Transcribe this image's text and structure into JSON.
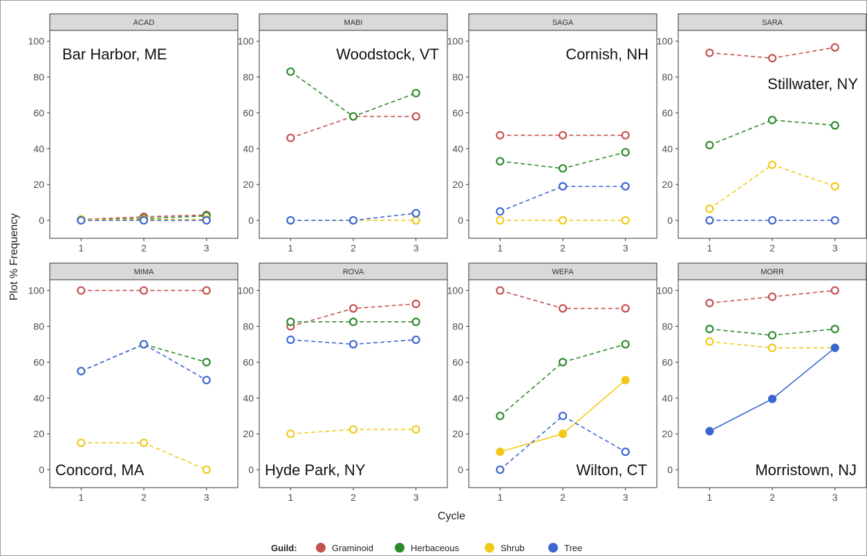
{
  "chart_data": {
    "type": "line",
    "xlabel": "Cycle",
    "ylabel": "Plot % Frequency",
    "x": [
      1,
      2,
      3
    ],
    "xticks": [
      "1",
      "2",
      "3"
    ],
    "yticks": [
      "0",
      "20",
      "40",
      "60",
      "80",
      "100"
    ],
    "ylim": [
      -10,
      106
    ],
    "xlim": [
      0.5,
      3.5
    ],
    "grid": false,
    "legend": {
      "title": "Guild:",
      "position": "bottom",
      "entries": [
        {
          "name": "Graminoid",
          "color": "#c5504f"
        },
        {
          "name": "Herbaceous",
          "color": "#2b8a2b"
        },
        {
          "name": "Shrub",
          "color": "#f2c91a"
        },
        {
          "name": "Tree",
          "color": "#3a66d0"
        }
      ]
    },
    "panels": [
      {
        "code": "ACAD",
        "location": "Bar Harbor, ME",
        "label_pos": "top-left",
        "series": [
          {
            "name": "Graminoid",
            "values": [
              0.5,
              2,
              3
            ],
            "style": "dashed",
            "filled": false
          },
          {
            "name": "Herbaceous",
            "values": [
              0.5,
              1,
              2.5
            ],
            "style": "dashed",
            "filled": false
          },
          {
            "name": "Shrub",
            "values": [
              0.5,
              0.5,
              0.5
            ],
            "style": "dashed",
            "filled": false
          },
          {
            "name": "Tree",
            "values": [
              0,
              0,
              0
            ],
            "style": "dashed",
            "filled": false
          }
        ]
      },
      {
        "code": "MABI",
        "location": "Woodstock, VT",
        "label_pos": "top-right",
        "series": [
          {
            "name": "Graminoid",
            "values": [
              46,
              58,
              58
            ],
            "style": "dashed",
            "filled": false
          },
          {
            "name": "Herbaceous",
            "values": [
              83,
              58,
              71
            ],
            "style": "dashed",
            "filled": false
          },
          {
            "name": "Shrub",
            "values": [
              0,
              0,
              0
            ],
            "style": "dashed",
            "filled": false
          },
          {
            "name": "Tree",
            "values": [
              0,
              0,
              4
            ],
            "style": "dashed",
            "filled": false
          }
        ]
      },
      {
        "code": "SAGA",
        "location": "Cornish, NH",
        "label_pos": "top-right",
        "series": [
          {
            "name": "Graminoid",
            "values": [
              47.5,
              47.5,
              47.5
            ],
            "style": "dashed",
            "filled": false
          },
          {
            "name": "Herbaceous",
            "values": [
              33,
              29,
              38
            ],
            "style": "dashed",
            "filled": false
          },
          {
            "name": "Shrub",
            "values": [
              0,
              0,
              0
            ],
            "style": "dashed",
            "filled": false
          },
          {
            "name": "Tree",
            "values": [
              5,
              19,
              19
            ],
            "style": "dashed",
            "filled": false
          }
        ]
      },
      {
        "code": "SARA",
        "location": "Stillwater, NY",
        "label_pos": "upper-right",
        "series": [
          {
            "name": "Graminoid",
            "values": [
              93.5,
              90.5,
              96.5
            ],
            "style": "dashed",
            "filled": false
          },
          {
            "name": "Herbaceous",
            "values": [
              42,
              56,
              53
            ],
            "style": "dashed",
            "filled": false
          },
          {
            "name": "Shrub",
            "values": [
              6.5,
              31,
              19
            ],
            "style": "dashed",
            "filled": false
          },
          {
            "name": "Tree",
            "values": [
              0,
              0,
              0
            ],
            "style": "dashed",
            "filled": false
          }
        ]
      },
      {
        "code": "MIMA",
        "location": "Concord, MA",
        "label_pos": "bottom-left",
        "series": [
          {
            "name": "Graminoid",
            "values": [
              100,
              100,
              100
            ],
            "style": "dashed",
            "filled": false
          },
          {
            "name": "Herbaceous",
            "values": [
              55,
              70,
              60
            ],
            "style": "dashed",
            "filled": false
          },
          {
            "name": "Shrub",
            "values": [
              15,
              15,
              0
            ],
            "style": "dashed",
            "filled": false
          },
          {
            "name": "Tree",
            "values": [
              55,
              70,
              50
            ],
            "style": "dashed",
            "filled": false
          }
        ]
      },
      {
        "code": "ROVA",
        "location": "Hyde Park, NY",
        "label_pos": "bottom-left",
        "series": [
          {
            "name": "Graminoid",
            "values": [
              80,
              90,
              92.5
            ],
            "style": "dashed",
            "filled": false
          },
          {
            "name": "Herbaceous",
            "values": [
              82.5,
              82.5,
              82.5
            ],
            "style": "dashed",
            "filled": false
          },
          {
            "name": "Shrub",
            "values": [
              20,
              22.5,
              22.5
            ],
            "style": "dashed",
            "filled": false
          },
          {
            "name": "Tree",
            "values": [
              72.5,
              70,
              72.5
            ],
            "style": "dashed",
            "filled": false
          }
        ]
      },
      {
        "code": "WEFA",
        "location": "Wilton, CT",
        "label_pos": "bottom-right",
        "series": [
          {
            "name": "Graminoid",
            "values": [
              100,
              90,
              90
            ],
            "style": "dashed",
            "filled": false
          },
          {
            "name": "Herbaceous",
            "values": [
              30,
              60,
              70
            ],
            "style": "dashed",
            "filled": false
          },
          {
            "name": "Shrub",
            "values": [
              10,
              20,
              50
            ],
            "style": "solid",
            "filled": true
          },
          {
            "name": "Tree",
            "values": [
              0,
              30,
              10
            ],
            "style": "dashed",
            "filled": false
          }
        ]
      },
      {
        "code": "MORR",
        "location": "Morristown, NJ",
        "label_pos": "bottom-right",
        "series": [
          {
            "name": "Graminoid",
            "values": [
              93,
              96.5,
              100
            ],
            "style": "dashed",
            "filled": false
          },
          {
            "name": "Herbaceous",
            "values": [
              78.5,
              75,
              78.5
            ],
            "style": "dashed",
            "filled": false
          },
          {
            "name": "Shrub",
            "values": [
              71.5,
              68,
              68
            ],
            "style": "dashed",
            "filled": false
          },
          {
            "name": "Tree",
            "values": [
              21.5,
              39.5,
              68
            ],
            "style": "solid",
            "filled": true
          }
        ]
      }
    ]
  }
}
